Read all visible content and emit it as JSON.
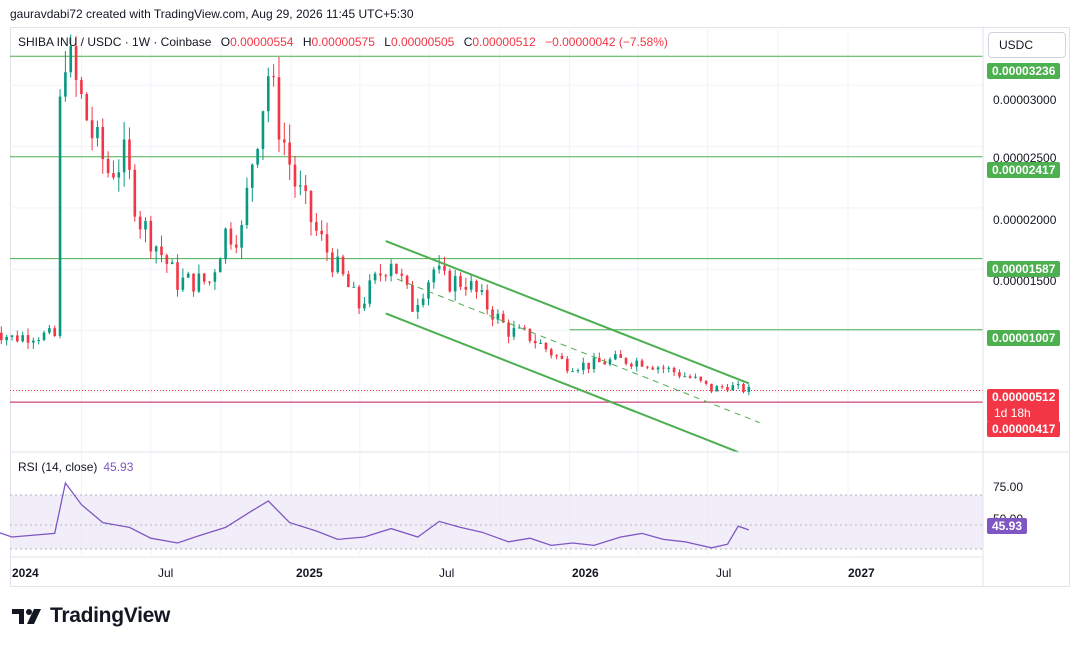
{
  "credit": "gauravdabi72 created with TradingView.com, Aug 29, 2026 11:45 UTC+5:30",
  "legend": {
    "symbol": "SHIBA INU / USDC · 1W · Coinbase",
    "o_label": "O",
    "o": "0.00000554",
    "h_label": "H",
    "h": "0.00000575",
    "l_label": "L",
    "l": "0.00000505",
    "c_label": "C",
    "c": "0.00000512",
    "change": "−0.00000042 (−7.58%)"
  },
  "currency": "USDC",
  "rsi": {
    "label": "RSI (14, close)",
    "value": "45.93",
    "level_upper": "75.00",
    "level_mid": "50.00",
    "tag": "45.93"
  },
  "price_axis": {
    "ticks": [
      "0.00003000",
      "0.00002500",
      "0.00002000",
      "0.00001500"
    ]
  },
  "price_tags": {
    "r1": "0.00003236",
    "r2": "0.00002417",
    "r3": "0.00001587",
    "r4": "0.00001007",
    "current": "0.00000512",
    "countdown": "1d 18h",
    "support": "0.00000417"
  },
  "time_axis": {
    "labels": [
      "2024",
      "Jul",
      "2025",
      "Jul",
      "2026",
      "Jul",
      "2027"
    ]
  },
  "brand": "TradingView",
  "colors": {
    "up": "#089981",
    "down": "#f23645",
    "line": "#4caf50",
    "rsi": "#7e57c2",
    "support": "#c2185b"
  },
  "chart_data": {
    "type": "candlestick",
    "symbol": "SHIBA INU / USDC",
    "interval": "1W",
    "exchange": "Coinbase",
    "x_range": [
      "2023-12",
      "2026-11"
    ],
    "y_range": [
      8e-07,
      3.5e-05
    ],
    "horizontal_levels": [
      3.236e-05,
      2.417e-05,
      1.587e-05,
      1.007e-05,
      4.17e-06
    ],
    "last_close": 5.12e-06,
    "descending_channel": {
      "upper": [
        [
          "2025-05-05",
          1.73e-05
        ],
        [
          "2026-08-24",
          5.7e-06
        ]
      ],
      "lower": [
        [
          "2025-05-05",
          1.14e-05
        ],
        [
          "2026-08-10",
          1e-07
        ]
      ],
      "mid_dashed": [
        [
          "2025-05-20",
          1.42e-05
        ],
        [
          "2026-09-07",
          2.5e-06
        ]
      ]
    },
    "close_series": [
      [
        "2023-12-04",
        1.06e-05
      ],
      [
        "2023-12-18",
        9.8e-06
      ],
      [
        "2024-01-01",
        9.4e-06
      ],
      [
        "2024-01-29",
        9.7e-06
      ],
      [
        "2024-02-26",
        9.5e-06
      ],
      [
        "2024-03-04",
        2.8e-05
      ],
      [
        "2024-03-11",
        3.3e-05
      ],
      [
        "2024-03-25",
        3e-05
      ],
      [
        "2024-04-15",
        2.6e-05
      ],
      [
        "2024-05-06",
        2.3e-05
      ],
      [
        "2024-05-27",
        2.4e-05
      ],
      [
        "2024-06-17",
        1.9e-05
      ],
      [
        "2024-07-08",
        1.7e-05
      ],
      [
        "2024-08-05",
        1.4e-05
      ],
      [
        "2024-08-26",
        1.4e-05
      ],
      [
        "2024-09-16",
        1.4e-05
      ],
      [
        "2024-10-07",
        1.8e-05
      ],
      [
        "2024-10-28",
        1.8e-05
      ],
      [
        "2024-11-11",
        2.4e-05
      ],
      [
        "2024-12-02",
        3.1e-05
      ],
      [
        "2024-12-16",
        2.7e-05
      ],
      [
        "2025-01-06",
        2.2e-05
      ],
      [
        "2025-02-03",
        1.8e-05
      ],
      [
        "2025-03-03",
        1.5e-05
      ],
      [
        "2025-03-31",
        1.2e-05
      ],
      [
        "2025-04-21",
        1.4e-05
      ],
      [
        "2025-05-12",
        1.6e-05
      ],
      [
        "2025-06-09",
        1.2e-05
      ],
      [
        "2025-07-07",
        1.5e-05
      ],
      [
        "2025-07-21",
        1.4e-05
      ],
      [
        "2025-08-18",
        1.4e-05
      ],
      [
        "2025-09-15",
        1.2e-05
      ],
      [
        "2025-10-13",
        1e-05
      ],
      [
        "2025-11-10",
        9.5e-06
      ],
      [
        "2025-12-08",
        8.2e-06
      ],
      [
        "2025-12-29",
        7.2e-06
      ],
      [
        "2026-01-26",
        7.2e-06
      ],
      [
        "2026-03-02",
        7.6e-06
      ],
      [
        "2026-04-06",
        7.5e-06
      ],
      [
        "2026-05-11",
        6.8e-06
      ],
      [
        "2026-06-15",
        6e-06
      ],
      [
        "2026-07-06",
        5.2e-06
      ],
      [
        "2026-07-27",
        5.5e-06
      ],
      [
        "2026-08-17",
        5.2e-06
      ],
      [
        "2026-08-24",
        5.12e-06
      ]
    ],
    "rsi_series": [
      [
        "2023-12-04",
        46
      ],
      [
        "2024-01-01",
        40
      ],
      [
        "2024-02-26",
        43
      ],
      [
        "2024-03-11",
        85
      ],
      [
        "2024-04-01",
        67
      ],
      [
        "2024-04-29",
        52
      ],
      [
        "2024-06-03",
        48
      ],
      [
        "2024-07-01",
        39
      ],
      [
        "2024-08-05",
        35
      ],
      [
        "2024-09-02",
        41
      ],
      [
        "2024-10-07",
        48
      ],
      [
        "2024-11-11",
        62
      ],
      [
        "2024-12-02",
        70
      ],
      [
        "2024-12-30",
        52
      ],
      [
        "2025-02-03",
        45
      ],
      [
        "2025-03-03",
        38
      ],
      [
        "2025-04-07",
        40
      ],
      [
        "2025-05-12",
        47
      ],
      [
        "2025-06-16",
        40
      ],
      [
        "2025-07-14",
        53
      ],
      [
        "2025-08-11",
        48
      ],
      [
        "2025-09-08",
        44
      ],
      [
        "2025-10-13",
        36
      ],
      [
        "2025-11-10",
        39
      ],
      [
        "2025-12-08",
        33
      ],
      [
        "2026-01-05",
        35
      ],
      [
        "2026-02-02",
        33
      ],
      [
        "2026-03-09",
        40
      ],
      [
        "2026-04-06",
        43
      ],
      [
        "2026-05-04",
        38
      ],
      [
        "2026-06-01",
        36
      ],
      [
        "2026-07-06",
        31
      ],
      [
        "2026-07-27",
        34
      ],
      [
        "2026-08-10",
        49
      ],
      [
        "2026-08-24",
        45.93
      ]
    ]
  }
}
